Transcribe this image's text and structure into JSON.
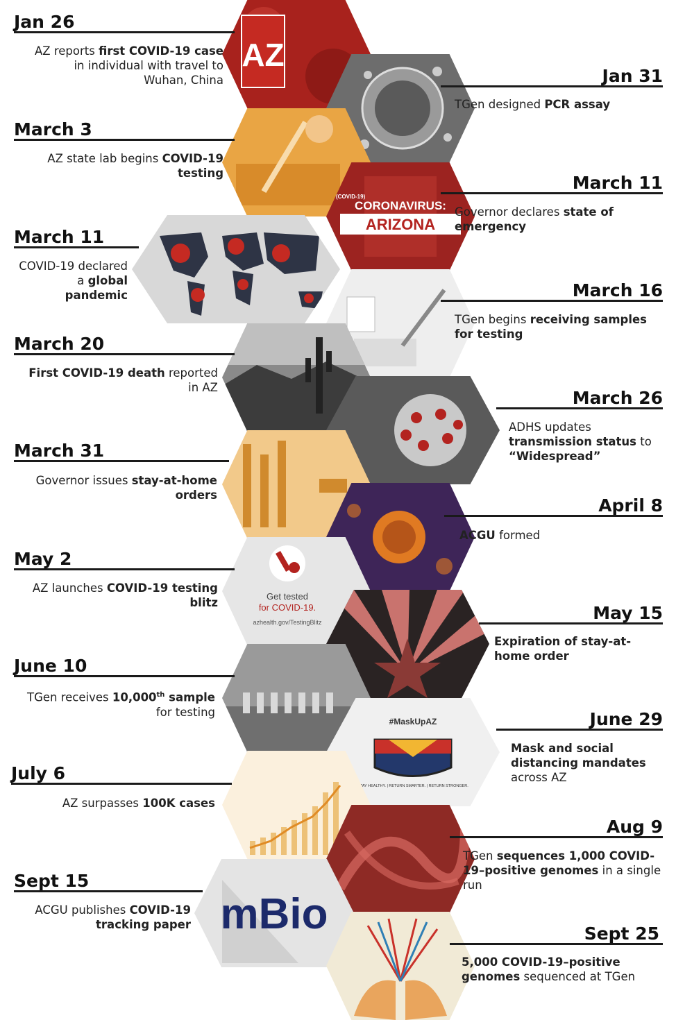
{
  "events": [
    {
      "date": "Jan 26",
      "parts": [
        "AZ reports ",
        "first COVID-19 case",
        " in individual with travel to Wuhan, China"
      ]
    },
    {
      "date": "Jan 31",
      "parts": [
        "TGen designed ",
        "PCR assay",
        ""
      ]
    },
    {
      "date": "March 3",
      "parts": [
        "AZ state lab begins ",
        "COVID-19 testing",
        ""
      ]
    },
    {
      "date": "March 11",
      "parts": [
        "Governor declares ",
        "state of emergency",
        ""
      ]
    },
    {
      "date": "March 11",
      "parts": [
        "COVID-19 declared a ",
        "global pandemic",
        ""
      ]
    },
    {
      "date": "March 16",
      "parts": [
        "TGen begins ",
        "receiving samples for testing",
        ""
      ]
    },
    {
      "date": "March 20",
      "parts": [
        "",
        "First COVID-19 death",
        " reported in AZ"
      ]
    },
    {
      "date": "March 26",
      "parts": [
        "ADHS updates ",
        "transmission status",
        " to ",
        "“Widespread”"
      ]
    },
    {
      "date": "March 31",
      "parts": [
        "Governor issues ",
        "stay-at-home orders",
        ""
      ]
    },
    {
      "date": "April 8",
      "parts": [
        "",
        "ACGU",
        " formed"
      ]
    },
    {
      "date": "May 2",
      "parts": [
        "AZ launches ",
        "COVID-19 testing blitz",
        ""
      ]
    },
    {
      "date": "May 15",
      "parts": [
        "",
        "Expiration of stay-at-home order",
        ""
      ]
    },
    {
      "date": "June 10",
      "parts": [
        "TGen receives ",
        "10,000",
        "th",
        " sample",
        " for testing"
      ]
    },
    {
      "date": "June 29",
      "parts": [
        "",
        "Mask and social distancing mandates",
        " across AZ"
      ]
    },
    {
      "date": "July 6",
      "parts": [
        "AZ surpasses ",
        "100K cases",
        ""
      ]
    },
    {
      "date": "Aug 9",
      "parts": [
        "TGen ",
        "sequences 1,000 COVID-19–positive genomes",
        " in a single run"
      ]
    },
    {
      "date": "Sept 15",
      "parts": [
        "ACGU publishes ",
        "COVID-19 tracking paper",
        ""
      ]
    },
    {
      "date": "Sept 25",
      "parts": [
        "",
        "5,000 COVID-19–positive genomes",
        " sequenced at TGen"
      ]
    }
  ],
  "images": {
    "az_badge": "AZ",
    "corona_tag": "(COVID-19)",
    "corona_title": "CORONAVIRUS:",
    "corona_state": "ARIZONA",
    "test_line1": "Get tested",
    "test_line2": "for COVID-19.",
    "test_url": "azhealth.gov/TestingBlitz",
    "mask_tag": "#MaskUpAZ",
    "mask_footer": "STAY HEALTHY. | RETURN SMARTER. | RETURN STRONGER.",
    "mbio": "mBio"
  },
  "colors": {
    "red": "#b3231f",
    "orange": "#e8a33d",
    "purple": "#4a2a6a",
    "gray": "#cfcfcf"
  }
}
